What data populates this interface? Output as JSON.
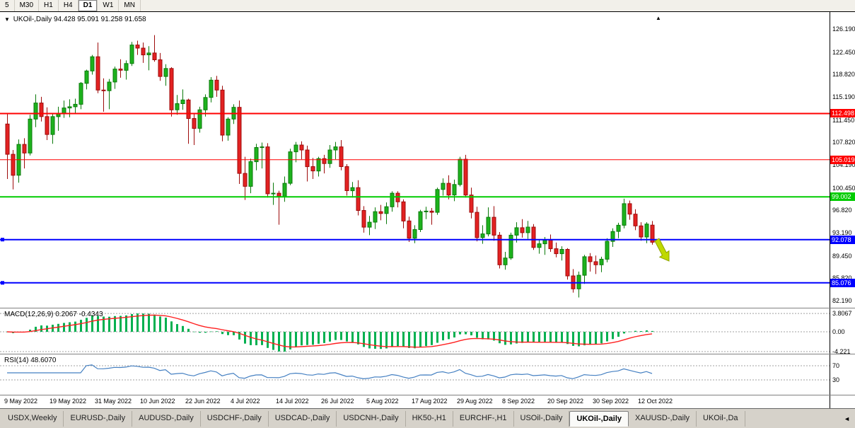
{
  "toolbar": {
    "timeframes": [
      "5",
      "M30",
      "H1",
      "H4",
      "D1",
      "W1",
      "MN"
    ],
    "active": "D1"
  },
  "chart": {
    "symbol_label": "UKOil-,Daily",
    "ohlc_label": "94.428 95.091 91.258 91.658",
    "dropdown_icon": "▼",
    "shift_marker_icon": "▲",
    "price_axis_ticks": [
      "126.190",
      "122.450",
      "118.820",
      "115.190",
      "111.450",
      "107.820",
      "104.190",
      "100.450",
      "96.820",
      "93.190",
      "89.450",
      "85.820",
      "82.190"
    ],
    "hlines": [
      {
        "price": 112.498,
        "label": "112.498",
        "color": "#FF0000",
        "thickness": 2,
        "edge_marker": false
      },
      {
        "price": 105.019,
        "label": "105.019",
        "color": "#FF0000",
        "thickness": 1,
        "edge_marker": false
      },
      {
        "price": 99.002,
        "label": "99.002",
        "color": "#00CC00",
        "thickness": 2,
        "edge_marker": false
      },
      {
        "price": 92.078,
        "label": "92.078",
        "color": "#0000FF",
        "thickness": 2,
        "edge_marker": true
      },
      {
        "price": 85.076,
        "label": "85.076",
        "color": "#0000FF",
        "thickness": 2,
        "edge_marker": true
      }
    ],
    "arrow_color": "#BFD900",
    "arrow_stroke": "#8FA400",
    "colors": {
      "bull": "#1DB21D",
      "bull_border": "#0B7A0B",
      "bear": "#E32222",
      "bear_border": "#9E0B0B",
      "macd_hist": "#00B050",
      "macd_signal": "#FF2020",
      "rsi_line": "#4580C2",
      "level_dash": "#A0A0A0"
    }
  },
  "macd": {
    "name": "MACD(12,26,9)",
    "values": "0.2067 -0.4343",
    "axis_max": "3.8067",
    "axis_zero": "0.00",
    "axis_min": "-4.221"
  },
  "rsi": {
    "name": "RSI(14)",
    "value": "48.6070",
    "upper_level": "70",
    "lower_level": "30"
  },
  "tabs": {
    "items": [
      {
        "label": "USDX,Weekly"
      },
      {
        "label": "EURUSD-,Daily"
      },
      {
        "label": "AUDUSD-,Daily"
      },
      {
        "label": "USDCHF-,Daily"
      },
      {
        "label": "USDCAD-,Daily"
      },
      {
        "label": "USDCNH-,Daily"
      },
      {
        "label": "HK50-,H1"
      },
      {
        "label": "EURCHF-,H1"
      },
      {
        "label": "USOil-,Daily"
      },
      {
        "label": "UKOil-,Daily",
        "active": true
      },
      {
        "label": "XAUUSD-,Daily"
      },
      {
        "label": "UKOil-,Da"
      }
    ],
    "scroll_icon": "◄"
  },
  "chart_data": {
    "type": "candlestick",
    "symbol": "UKOil-",
    "timeframe": "Daily",
    "title": "UKOil-,Daily",
    "y_range": [
      82.19,
      126.19
    ],
    "x_axis_labels": [
      {
        "index": 0,
        "label": "9 May 2022"
      },
      {
        "index": 8,
        "label": "19 May 2022"
      },
      {
        "index": 16,
        "label": "31 May 2022"
      },
      {
        "index": 24,
        "label": "10 Jun 2022"
      },
      {
        "index": 32,
        "label": "22 Jun 2022"
      },
      {
        "index": 40,
        "label": "4 Jul 2022"
      },
      {
        "index": 48,
        "label": "14 Jul 2022"
      },
      {
        "index": 56,
        "label": "26 Jul 2022"
      },
      {
        "index": 64,
        "label": "5 Aug 2022"
      },
      {
        "index": 72,
        "label": "17 Aug 2022"
      },
      {
        "index": 80,
        "label": "29 Aug 2022"
      },
      {
        "index": 88,
        "label": "8 Sep 2022"
      },
      {
        "index": 96,
        "label": "20 Sep 2022"
      },
      {
        "index": 104,
        "label": "30 Sep 2022"
      },
      {
        "index": 112,
        "label": "12 Oct 2022"
      }
    ],
    "ohlc_format": [
      "open",
      "high",
      "low",
      "close"
    ],
    "ohlc": [
      [
        110.8,
        112.4,
        101.9,
        105.9
      ],
      [
        105.9,
        106.6,
        100.2,
        102.5
      ],
      [
        102.5,
        108.3,
        101.3,
        107.5
      ],
      [
        107.5,
        108.5,
        103.6,
        106.1
      ],
      [
        106.1,
        112.3,
        105.7,
        111.6
      ],
      [
        111.6,
        115.6,
        110.3,
        114.2
      ],
      [
        114.2,
        115.2,
        111.2,
        112.0
      ],
      [
        112.0,
        113.5,
        108.2,
        109.1
      ],
      [
        109.1,
        112.5,
        107.6,
        112.0
      ],
      [
        112.0,
        113.6,
        109.7,
        112.5
      ],
      [
        112.5,
        114.6,
        111.8,
        113.4
      ],
      [
        113.4,
        114.8,
        111.9,
        113.6
      ],
      [
        113.6,
        114.9,
        112.5,
        114.0
      ],
      [
        114.0,
        117.6,
        113.2,
        117.4
      ],
      [
        117.4,
        119.6,
        116.4,
        119.4
      ],
      [
        119.4,
        122.0,
        118.8,
        121.7
      ],
      [
        121.7,
        124.0,
        115.8,
        116.3
      ],
      [
        116.3,
        118.2,
        112.8,
        116.2
      ],
      [
        116.2,
        118.1,
        113.2,
        117.6
      ],
      [
        117.6,
        120.1,
        116.5,
        119.7
      ],
      [
        119.7,
        121.3,
        118.3,
        119.5
      ],
      [
        119.5,
        121.1,
        118.0,
        120.6
      ],
      [
        120.6,
        124.1,
        120.2,
        123.6
      ],
      [
        123.6,
        124.3,
        122.0,
        123.1
      ],
      [
        123.1,
        124.0,
        120.7,
        122.0
      ],
      [
        122.0,
        123.4,
        119.5,
        122.3
      ],
      [
        122.3,
        125.2,
        120.9,
        121.2
      ],
      [
        121.2,
        122.3,
        117.8,
        118.5
      ],
      [
        118.5,
        120.5,
        117.0,
        119.8
      ],
      [
        119.8,
        120.0,
        112.0,
        113.1
      ],
      [
        113.1,
        115.5,
        112.3,
        114.1
      ],
      [
        114.1,
        116.4,
        113.1,
        114.7
      ],
      [
        114.7,
        114.9,
        107.6,
        111.7
      ],
      [
        111.7,
        112.5,
        107.4,
        110.1
      ],
      [
        110.1,
        113.6,
        109.4,
        113.1
      ],
      [
        113.1,
        115.6,
        112.0,
        115.1
      ],
      [
        115.1,
        118.4,
        114.3,
        117.9
      ],
      [
        117.9,
        118.6,
        115.2,
        116.3
      ],
      [
        116.3,
        117.0,
        108.0,
        109.0
      ],
      [
        109.0,
        111.9,
        108.1,
        111.6
      ],
      [
        111.6,
        114.0,
        110.8,
        113.5
      ],
      [
        113.5,
        114.6,
        101.1,
        102.8
      ],
      [
        102.8,
        105.5,
        98.5,
        100.7
      ],
      [
        100.7,
        105.2,
        99.6,
        104.7
      ],
      [
        104.7,
        107.6,
        103.3,
        107.0
      ],
      [
        107.0,
        107.8,
        103.6,
        107.1
      ],
      [
        107.1,
        107.7,
        98.9,
        99.5
      ],
      [
        99.5,
        101.3,
        97.7,
        99.6
      ],
      [
        99.6,
        100.0,
        94.5,
        99.1
      ],
      [
        99.1,
        102.3,
        98.2,
        101.2
      ],
      [
        101.2,
        106.8,
        100.9,
        106.3
      ],
      [
        106.3,
        107.9,
        104.6,
        107.4
      ],
      [
        107.4,
        108.0,
        105.1,
        106.6
      ],
      [
        106.6,
        107.3,
        101.5,
        103.9
      ],
      [
        103.9,
        105.3,
        101.9,
        103.2
      ],
      [
        103.2,
        105.5,
        102.3,
        105.2
      ],
      [
        105.2,
        105.8,
        102.8,
        104.4
      ],
      [
        104.4,
        107.4,
        103.7,
        106.6
      ],
      [
        106.6,
        107.9,
        105.1,
        107.1
      ],
      [
        107.1,
        108.2,
        103.3,
        103.9
      ],
      [
        103.9,
        104.3,
        99.2,
        100.0
      ],
      [
        100.0,
        101.4,
        98.9,
        100.5
      ],
      [
        100.5,
        101.7,
        96.0,
        96.8
      ],
      [
        96.8,
        97.5,
        93.2,
        94.1
      ],
      [
        94.1,
        95.9,
        92.8,
        94.9
      ],
      [
        94.9,
        97.3,
        93.8,
        96.6
      ],
      [
        96.6,
        97.7,
        95.2,
        96.3
      ],
      [
        96.3,
        98.1,
        94.6,
        97.4
      ],
      [
        97.4,
        99.9,
        96.6,
        99.6
      ],
      [
        99.6,
        99.9,
        97.3,
        98.2
      ],
      [
        98.2,
        98.6,
        93.9,
        95.1
      ],
      [
        95.1,
        95.8,
        91.7,
        92.3
      ],
      [
        92.3,
        94.4,
        91.5,
        93.7
      ],
      [
        93.7,
        96.9,
        93.3,
        96.6
      ],
      [
        96.6,
        97.4,
        95.4,
        96.7
      ],
      [
        96.7,
        97.2,
        94.5,
        96.5
      ],
      [
        96.5,
        100.5,
        96.1,
        100.2
      ],
      [
        100.2,
        102.0,
        99.2,
        101.2
      ],
      [
        101.2,
        102.5,
        98.6,
        99.3
      ],
      [
        99.3,
        101.8,
        98.3,
        101.0
      ],
      [
        101.0,
        105.5,
        100.7,
        105.1
      ],
      [
        105.1,
        105.8,
        98.9,
        99.3
      ],
      [
        99.3,
        100.5,
        95.5,
        96.5
      ],
      [
        96.5,
        97.4,
        91.8,
        92.4
      ],
      [
        92.4,
        94.4,
        91.4,
        93.0
      ],
      [
        93.0,
        97.3,
        92.6,
        95.7
      ],
      [
        95.7,
        97.5,
        91.9,
        92.8
      ],
      [
        92.8,
        93.3,
        87.4,
        88.0
      ],
      [
        88.0,
        90.1,
        87.2,
        89.1
      ],
      [
        89.1,
        93.2,
        88.8,
        92.8
      ],
      [
        92.8,
        94.9,
        91.6,
        94.0
      ],
      [
        94.0,
        95.4,
        92.4,
        93.2
      ],
      [
        93.2,
        95.1,
        92.2,
        94.1
      ],
      [
        94.1,
        94.6,
        90.4,
        90.8
      ],
      [
        90.8,
        92.0,
        89.8,
        91.4
      ],
      [
        91.4,
        92.5,
        89.6,
        92.0
      ],
      [
        92.0,
        92.9,
        90.1,
        90.6
      ],
      [
        90.6,
        91.6,
        89.2,
        89.8
      ],
      [
        89.8,
        91.0,
        88.7,
        90.5
      ],
      [
        90.5,
        90.7,
        85.6,
        86.2
      ],
      [
        86.2,
        87.3,
        83.5,
        84.1
      ],
      [
        84.1,
        86.9,
        82.7,
        86.3
      ],
      [
        86.3,
        89.6,
        84.9,
        89.3
      ],
      [
        89.3,
        89.9,
        86.9,
        88.5
      ],
      [
        88.5,
        89.5,
        86.5,
        88.0
      ],
      [
        88.0,
        89.3,
        86.8,
        88.9
      ],
      [
        88.9,
        92.3,
        88.4,
        91.8
      ],
      [
        91.8,
        93.9,
        90.9,
        93.4
      ],
      [
        93.4,
        94.8,
        92.3,
        94.4
      ],
      [
        94.4,
        98.7,
        93.9,
        97.9
      ],
      [
        97.9,
        98.4,
        95.3,
        96.2
      ],
      [
        96.2,
        97.0,
        93.6,
        94.3
      ],
      [
        94.3,
        94.9,
        91.9,
        92.5
      ],
      [
        92.5,
        94.9,
        91.5,
        94.6
      ],
      [
        94.428,
        95.091,
        91.258,
        91.658
      ]
    ]
  }
}
